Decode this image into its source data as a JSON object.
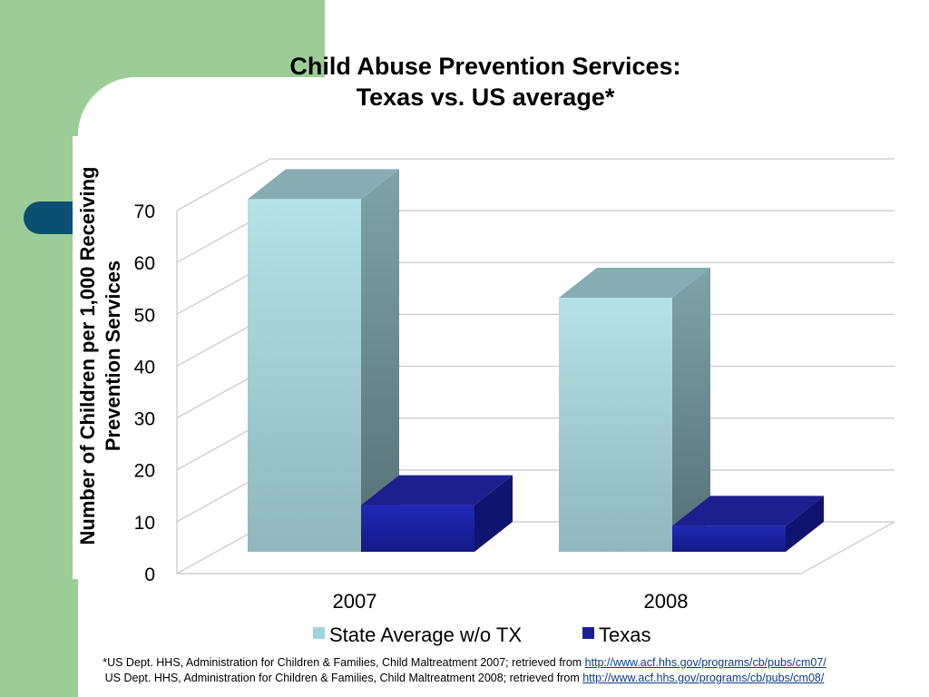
{
  "chart_data": {
    "type": "bar",
    "title": "Child Abuse Prevention Services:",
    "subtitle": "Texas vs. US average*",
    "ylabel_line1": "Number of Children per 1,000 Receiving",
    "ylabel_line2": "Prevention Services",
    "xlabel": "",
    "categories": [
      "2007",
      "2008"
    ],
    "series": [
      {
        "name": "State Average w/o TX",
        "values": [
          68,
          49
        ],
        "color": "#9fd6dc"
      },
      {
        "name": "Texas",
        "values": [
          9,
          5
        ],
        "color": "#1a1f9c"
      }
    ],
    "ylim": [
      0,
      70
    ],
    "yticks": [
      "0",
      "10",
      "20",
      "30",
      "40",
      "50",
      "60",
      "70"
    ],
    "grid": true,
    "legend_position": "bottom",
    "style": "3d-clustered-column"
  },
  "footnotes": [
    {
      "text": "*US Dept. HHS, Administration for Children & Families, Child Maltreatment 2007; retrieved from ",
      "link": "http://www.acf.hhs.gov/programs/cb/pubs/cm07/"
    },
    {
      "text": "US Dept. HHS, Administration for Children & Families, Child Maltreatment 2008; retrieved from ",
      "link": "http://www.acf.hhs.gov/programs/cb/pubs/cm08/"
    }
  ],
  "colors": {
    "background_green": "#9dcd96",
    "tab_navy": "#0b4f73",
    "state_average": "#9fd6dc",
    "texas": "#1a1f9c"
  }
}
